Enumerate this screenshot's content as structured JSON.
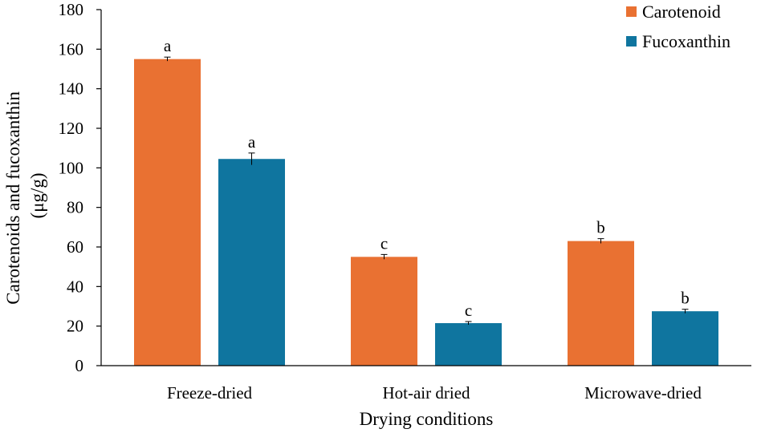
{
  "chart_data": {
    "type": "bar",
    "xlabel": "Drying conditions",
    "ylabel": [
      "Carotenoids and fucoxanthin",
      "(μg/g)"
    ],
    "ylim": [
      0,
      180
    ],
    "yticks": [
      0,
      20,
      40,
      60,
      80,
      100,
      120,
      140,
      160,
      180
    ],
    "categories": [
      "Freeze-dried",
      "Hot-air dried",
      "Microwave-dried"
    ],
    "series": [
      {
        "name": "Carotenoid",
        "color": "#E97132",
        "values": [
          155,
          55,
          63
        ],
        "errors": [
          1,
          1.2,
          1.2
        ],
        "significance": [
          "a",
          "c",
          "b"
        ]
      },
      {
        "name": "Fucoxanthin",
        "color": "#0F759F",
        "values": [
          104.5,
          21.5,
          27.5
        ],
        "errors": [
          3,
          0.8,
          1
        ],
        "significance": [
          "a",
          "c",
          "b"
        ]
      }
    ],
    "legend": "top-right",
    "grid": false
  }
}
